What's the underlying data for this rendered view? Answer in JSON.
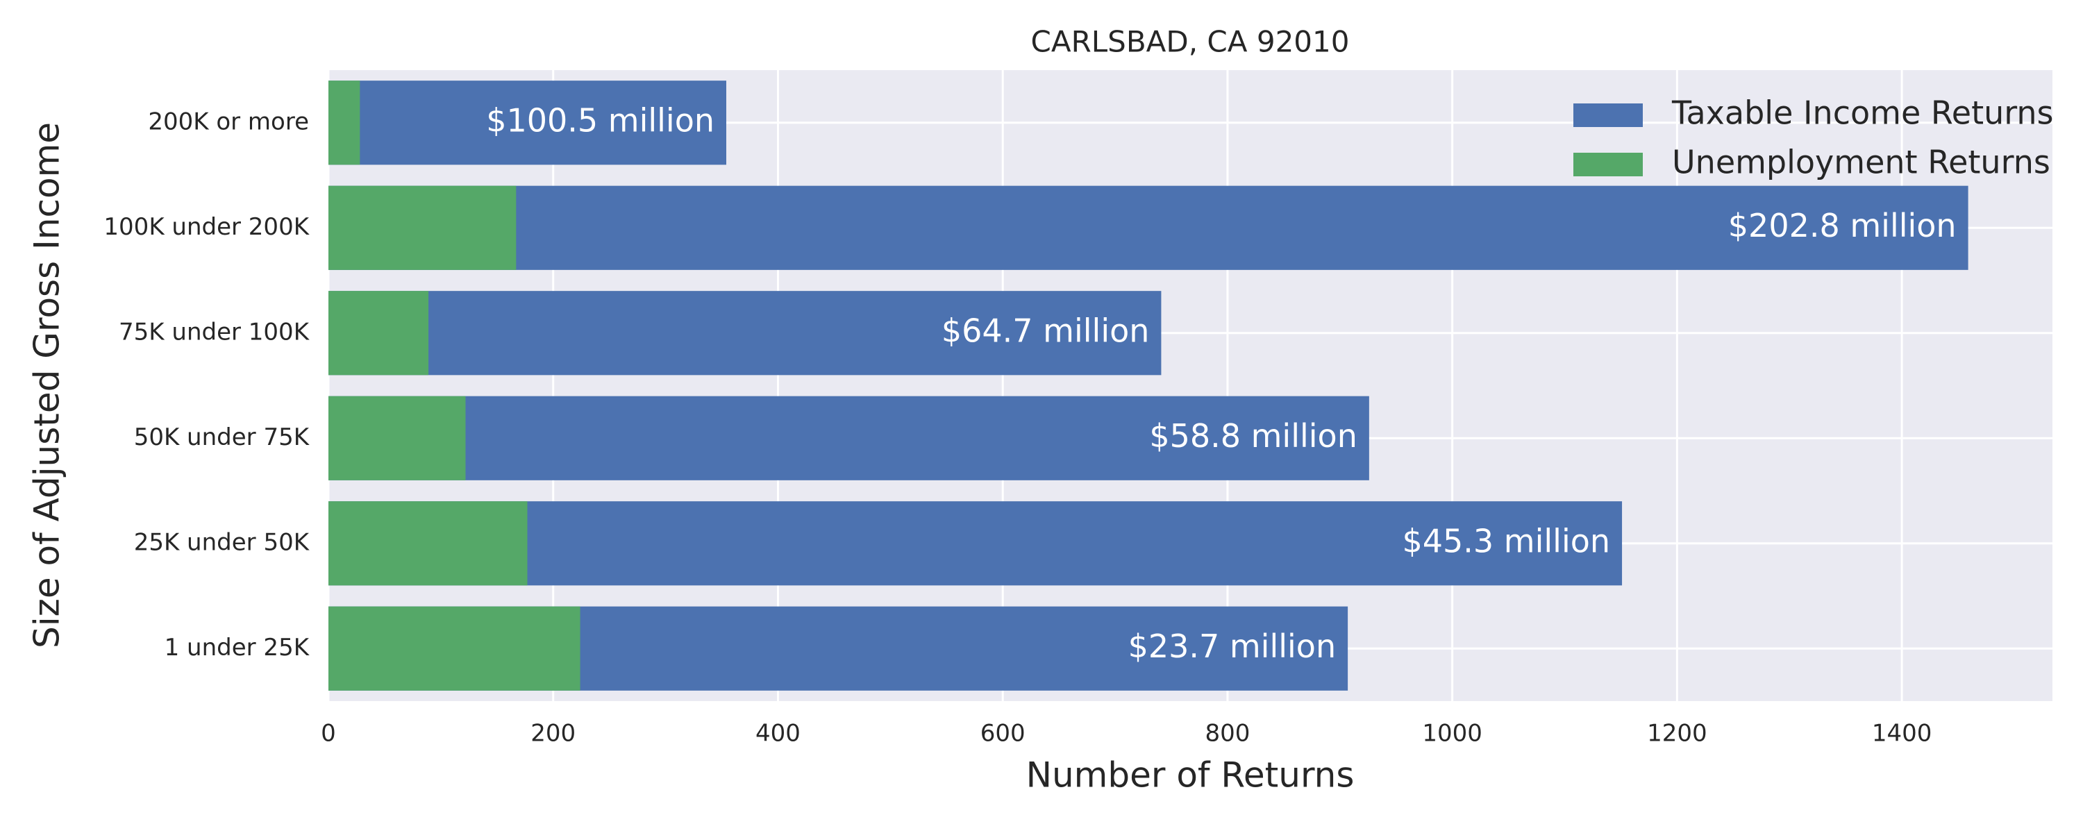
{
  "chart_data": {
    "type": "bar",
    "orientation": "horizontal",
    "title": "CARLSBAD, CA 92010",
    "x_label": "Number of Returns",
    "y_label": "Size of Adjusted Gross Income",
    "categories": [
      "200K or more",
      "100K under 200K",
      "75K under 100K",
      "50K under 75K",
      "25K under 50K",
      "1 under 25K"
    ],
    "series": [
      {
        "name": "Taxable Income Returns",
        "color": "#4c72b0",
        "values": [
          354,
          1459,
          741,
          926,
          1151,
          907
        ]
      },
      {
        "name": "Unemployment Returns",
        "color": "#55a868",
        "values": [
          28,
          167,
          89,
          122,
          177,
          224
        ]
      }
    ],
    "annotations": [
      "$100.5 million",
      "$202.8 million",
      "$64.7 million",
      "$58.8 million",
      "$45.3 million",
      "$23.7 million"
    ],
    "xlim": [
      0,
      1534
    ],
    "xticks": [
      0,
      200,
      400,
      600,
      800,
      1000,
      1200,
      1400
    ],
    "grid": true,
    "legend_position": "upper right"
  }
}
